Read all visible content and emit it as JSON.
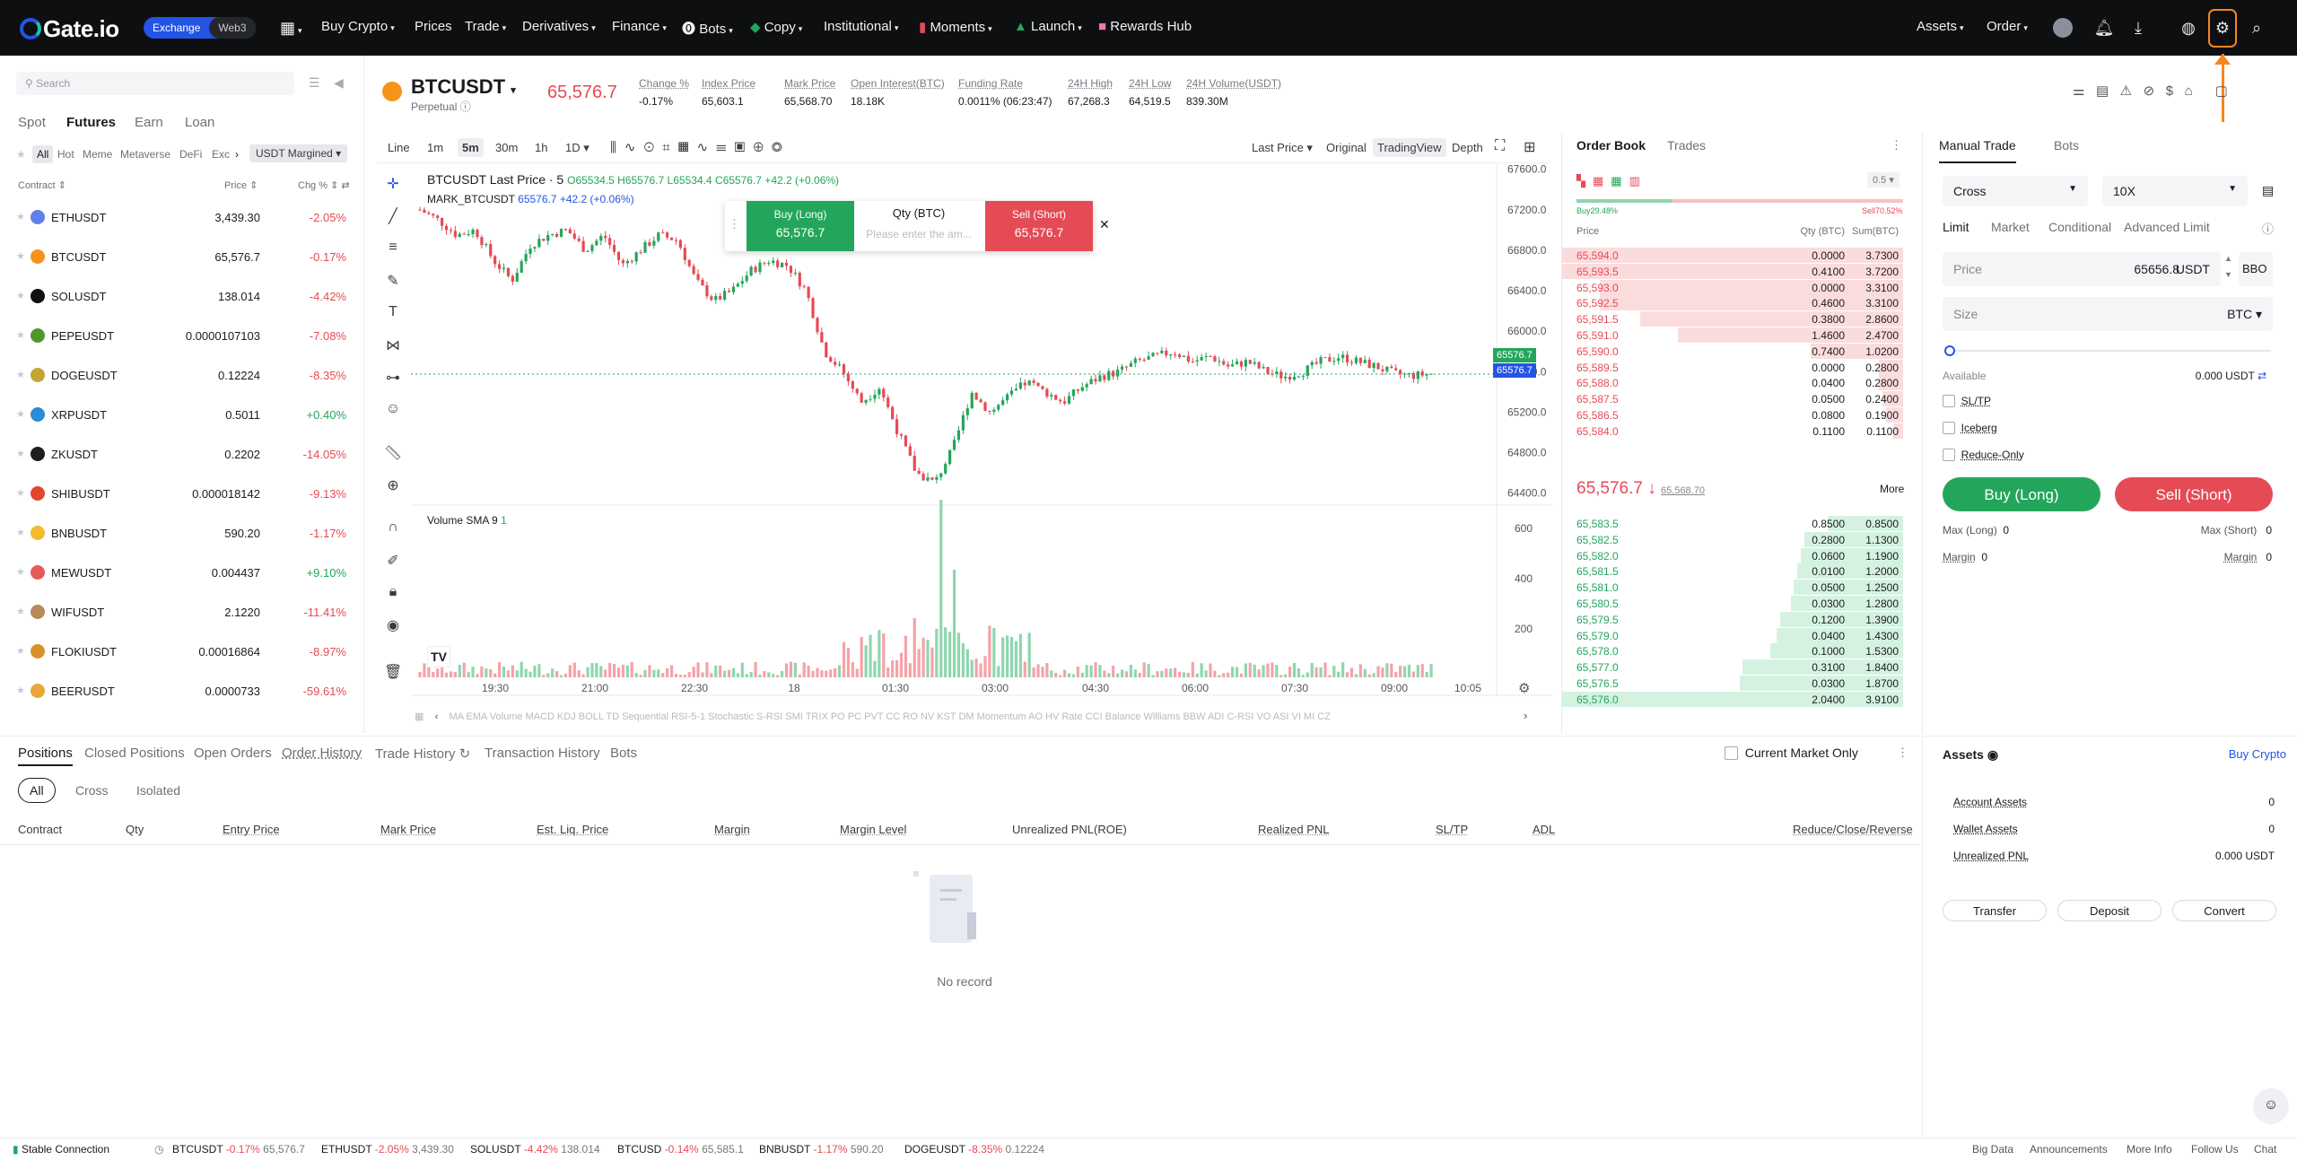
{
  "nav": {
    "logo": "Gate.io",
    "exchange": "Exchange",
    "web3": "Web3",
    "items": [
      "Buy Crypto",
      "Prices",
      "Trade",
      "Derivatives",
      "Finance",
      "Bots",
      "Copy",
      "Institutional",
      "Moments",
      "Launch",
      "Rewards Hub"
    ],
    "assets": "Assets",
    "order": "Order"
  },
  "market": {
    "search_placeholder": "Search",
    "tabs": [
      "Spot",
      "Futures",
      "Earn",
      "Loan"
    ],
    "subtabs": [
      "All",
      "Hot",
      "Meme",
      "Metaverse",
      "DeFi",
      "Exc"
    ],
    "margin_select": "USDT Margined",
    "col_contract": "Contract",
    "col_price": "Price",
    "col_change": "Chg %",
    "rows": [
      {
        "symbol": "ETHUSDT",
        "price": "3,439.30",
        "change": "-2.05%",
        "color": "#627eea"
      },
      {
        "symbol": "BTCUSDT",
        "price": "65,576.7",
        "change": "-0.17%",
        "color": "#f7931a"
      },
      {
        "symbol": "SOLUSDT",
        "price": "138.014",
        "change": "-4.42%",
        "color": "#111111"
      },
      {
        "symbol": "PEPEUSDT",
        "price": "0.0000107103",
        "change": "-7.08%",
        "color": "#4c9a2a"
      },
      {
        "symbol": "DOGEUSDT",
        "price": "0.12224",
        "change": "-8.35%",
        "color": "#c2a633"
      },
      {
        "symbol": "XRPUSDT",
        "price": "0.5011",
        "change": "+0.40%",
        "color": "#2a8bd6"
      },
      {
        "symbol": "ZKUSDT",
        "price": "0.2202",
        "change": "-14.05%",
        "color": "#1e1e1e"
      },
      {
        "symbol": "SHIBUSDT",
        "price": "0.000018142",
        "change": "-9.13%",
        "color": "#e0472b"
      },
      {
        "symbol": "BNBUSDT",
        "price": "590.20",
        "change": "-1.17%",
        "color": "#f3ba2f"
      },
      {
        "symbol": "MEWUSDT",
        "price": "0.004437",
        "change": "+9.10%",
        "color": "#e35c5c"
      },
      {
        "symbol": "WIFUSDT",
        "price": "2.1220",
        "change": "-11.41%",
        "color": "#b88a5a"
      },
      {
        "symbol": "FLOKIUSDT",
        "price": "0.00016864",
        "change": "-8.97%",
        "color": "#d9912b"
      },
      {
        "symbol": "BEERUSDT",
        "price": "0.0000733",
        "change": "-59.61%",
        "color": "#e7a73a"
      }
    ]
  },
  "ticker": {
    "pair": "BTCUSDT",
    "type": "Perpetual",
    "last_price": "65,576.7",
    "stats": [
      {
        "label": "Change %",
        "value": "-0.17%",
        "red": true
      },
      {
        "label": "Index Price",
        "value": "65,603.1"
      },
      {
        "label": "Mark Price",
        "value": "65,568.70"
      },
      {
        "label": "Open Interest(BTC)",
        "value": "18.18K"
      },
      {
        "label": "Funding Rate",
        "value": "0.0011% (06:23:47)"
      },
      {
        "label": "24H High",
        "value": "67,268.3"
      },
      {
        "label": "24H Low",
        "value": "64,519.5"
      },
      {
        "label": "24H Volume(USDT)",
        "value": "839.30M"
      }
    ]
  },
  "chart_toolbar": {
    "intervals": [
      "Line",
      "1m",
      "5m",
      "30m",
      "1h",
      "1D"
    ],
    "active_interval": "5m",
    "last_price_select": "Last Price",
    "views": [
      "Original",
      "TradingView",
      "Depth"
    ],
    "active_view": "TradingView"
  },
  "chart": {
    "legend_title": "BTCUSDT Last Price · 5",
    "ohlc": "O65534.5 H65576.7 L65534.4 C65576.7 +42.2 (+0.06%)",
    "mark_label": "MARK_BTCUSDT",
    "mark_value": "65576.7 +42.2 (+0.06%)",
    "volume_label": "Volume SMA 9",
    "volume_value": "1",
    "last_tag": "65576.7",
    "mark_tag": "65576.7",
    "quick_buy": "Buy (Long)",
    "quick_buy_price": "65,576.7",
    "quick_qty": "Qty (BTC)",
    "quick_qty_placeholder": "Please enter the am...",
    "quick_sell": "Sell (Short)",
    "quick_sell_price": "65,576.7",
    "indicators": "MA EMA Volume MACD KDJ BOLL TD Sequential RSI-5-1 Stochastic S-RSI SMI TRIX PO PC PVT CC RO NV KST DM Momentum AO HV Rate CCI Balance Williams BBW ADI C-RSI VO ASI VI MI CZ"
  },
  "chart_data": {
    "type": "candlestick",
    "price_axis": [
      "67600.0",
      "67200.0",
      "66800.0",
      "66400.0",
      "66000.0",
      "65600.0",
      "65200.0",
      "64800.0",
      "64400.0"
    ],
    "volume_axis": [
      "600",
      "400",
      "200"
    ],
    "time_axis": [
      "19:30",
      "21:00",
      "22:30",
      "18",
      "01:30",
      "03:00",
      "04:30",
      "06:00",
      "07:30",
      "09:00",
      "10:05"
    ],
    "price_path": [
      67200,
      67100,
      66950,
      67000,
      66700,
      66500,
      66850,
      66950,
      67000,
      66800,
      66950,
      66650,
      66800,
      66950,
      66900,
      66500,
      66300,
      66400,
      66600,
      66700,
      66650,
      66400,
      65800,
      65600,
      65300,
      65450,
      65000,
      64600,
      64500,
      64850,
      65400,
      65200,
      65350,
      65500,
      65400,
      65300,
      65450,
      65550,
      65600,
      65700,
      65750,
      65800,
      65700,
      65750,
      65650,
      65700,
      65600,
      65550,
      65600,
      65700,
      65750,
      65700,
      65650,
      65580,
      65560,
      65580
    ]
  },
  "orderbook": {
    "tabs": [
      "Order Book",
      "Trades"
    ],
    "precision": "0.5",
    "buy_pct": "Buy29.48%",
    "sell_pct": "Sell70.52%",
    "col_price": "Price",
    "col_qty": "Qty (BTC)",
    "col_sum": "Sum(BTC)",
    "asks": [
      {
        "p": "65,594.0",
        "q": "0.0000",
        "s": "3.7300",
        "d": 1.0
      },
      {
        "p": "65,593.5",
        "q": "0.4100",
        "s": "3.7200",
        "d": 1.0
      },
      {
        "p": "65,593.0",
        "q": "0.0000",
        "s": "3.3100",
        "d": 0.89
      },
      {
        "p": "65,592.5",
        "q": "0.4600",
        "s": "3.3100",
        "d": 0.89
      },
      {
        "p": "65,591.5",
        "q": "0.3800",
        "s": "2.8600",
        "d": 0.77
      },
      {
        "p": "65,591.0",
        "q": "1.4600",
        "s": "2.4700",
        "d": 0.66
      },
      {
        "p": "65,590.0",
        "q": "0.7400",
        "s": "1.0200",
        "d": 0.27
      },
      {
        "p": "65,589.5",
        "q": "0.0000",
        "s": "0.2800",
        "d": 0.07
      },
      {
        "p": "65,588.0",
        "q": "0.0400",
        "s": "0.2800",
        "d": 0.07
      },
      {
        "p": "65,587.5",
        "q": "0.0500",
        "s": "0.2400",
        "d": 0.06
      },
      {
        "p": "65,586.5",
        "q": "0.0800",
        "s": "0.1900",
        "d": 0.05
      },
      {
        "p": "65,584.0",
        "q": "0.1100",
        "s": "0.1100",
        "d": 0.03
      }
    ],
    "mid_price": "65,576.7",
    "mid_mark": "65,568.70",
    "more": "More",
    "bids": [
      {
        "p": "65,583.5",
        "q": "0.8500",
        "s": "0.8500",
        "d": 0.22
      },
      {
        "p": "65,582.5",
        "q": "0.2800",
        "s": "1.1300",
        "d": 0.29
      },
      {
        "p": "65,582.0",
        "q": "0.0600",
        "s": "1.1900",
        "d": 0.3
      },
      {
        "p": "65,581.5",
        "q": "0.0100",
        "s": "1.2000",
        "d": 0.31
      },
      {
        "p": "65,581.0",
        "q": "0.0500",
        "s": "1.2500",
        "d": 0.32
      },
      {
        "p": "65,580.5",
        "q": "0.0300",
        "s": "1.2800",
        "d": 0.33
      },
      {
        "p": "65,579.5",
        "q": "0.1200",
        "s": "1.3900",
        "d": 0.36
      },
      {
        "p": "65,579.0",
        "q": "0.0400",
        "s": "1.4300",
        "d": 0.37
      },
      {
        "p": "65,578.0",
        "q": "0.1000",
        "s": "1.5300",
        "d": 0.39
      },
      {
        "p": "65,577.0",
        "q": "0.3100",
        "s": "1.8400",
        "d": 0.47
      },
      {
        "p": "65,576.5",
        "q": "0.0300",
        "s": "1.8700",
        "d": 0.48
      },
      {
        "p": "65,576.0",
        "q": "2.0400",
        "s": "3.9100",
        "d": 1.0
      }
    ]
  },
  "trade": {
    "tabs": [
      "Manual Trade",
      "Bots"
    ],
    "margin_mode": "Cross",
    "leverage": "10X",
    "order_types": [
      "Limit",
      "Market",
      "Conditional",
      "Advanced Limit"
    ],
    "price_label": "Price",
    "price_value": "65656.8",
    "price_unit": "USDT",
    "bbo": "BBO",
    "size_label": "Size",
    "size_unit": "BTC",
    "available_label": "Available",
    "available_value": "0.000 USDT",
    "sltp": "SL/TP",
    "iceberg": "Iceberg",
    "reduce_only": "Reduce-Only",
    "buy": "Buy (Long)",
    "sell": "Sell (Short)",
    "max_long": "Max (Long)",
    "max_long_v": "0",
    "max_short": "Max (Short)",
    "max_short_v": "0",
    "margin": "Margin",
    "margin_v": "0"
  },
  "positions": {
    "tabs": [
      "Positions",
      "Closed Positions",
      "Open Orders",
      "Order History",
      "Trade History",
      "Transaction History",
      "Bots"
    ],
    "current_market_only": "Current Market Only",
    "filters": [
      "All",
      "Cross",
      "Isolated"
    ],
    "columns": [
      "Contract",
      "Qty",
      "Entry Price",
      "Mark Price",
      "Est. Liq. Price",
      "Margin",
      "Margin Level",
      "Unrealized PNL(ROE)",
      "Realized PNL",
      "SL/TP",
      "ADL",
      "Reduce/Close/Reverse"
    ],
    "empty": "No record"
  },
  "assets": {
    "title": "Assets",
    "buy_crypto": "Buy Crypto",
    "rows": [
      {
        "label": "Account Assets",
        "value": "0"
      },
      {
        "label": "Wallet Assets",
        "value": "0"
      },
      {
        "label": "Unrealized PNL",
        "value": "0.000 USDT"
      }
    ],
    "buttons": [
      "Transfer",
      "Deposit",
      "Convert"
    ]
  },
  "status": {
    "connection": "Stable Connection",
    "tickers": [
      {
        "s": "BTCUSDT",
        "c": "-0.17%",
        "p": "65,576.7"
      },
      {
        "s": "ETHUSDT",
        "c": "-2.05%",
        "p": "3,439.30"
      },
      {
        "s": "SOLUSDT",
        "c": "-4.42%",
        "p": "138.014"
      },
      {
        "s": "BTCUSD",
        "c": "-0.14%",
        "p": "65,585.1"
      },
      {
        "s": "BNBUSDT",
        "c": "-1.17%",
        "p": "590.20"
      },
      {
        "s": "DOGEUSDT",
        "c": "-8.35%",
        "p": "0.12224"
      }
    ],
    "links": [
      "Big Data",
      "Announcements",
      "More Info",
      "Follow Us",
      "Chat"
    ]
  }
}
